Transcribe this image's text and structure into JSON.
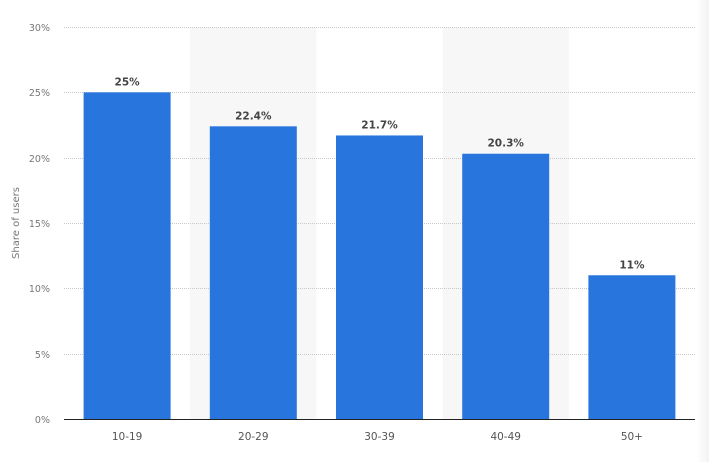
{
  "chart_data": {
    "type": "bar",
    "title": "",
    "xlabel": "",
    "ylabel": "Share of users",
    "categories": [
      "10-19",
      "20-29",
      "30-39",
      "40-49",
      "50+"
    ],
    "values": [
      25,
      22.4,
      21.7,
      20.3,
      11
    ],
    "data_labels": [
      "25%",
      "22.4%",
      "21.7%",
      "20.3%",
      "11%"
    ],
    "ylim": [
      0,
      30
    ],
    "yticks": [
      0,
      5,
      10,
      15,
      20,
      25,
      30
    ],
    "ytick_labels": [
      "0%",
      "5%",
      "10%",
      "15%",
      "20%",
      "25%",
      "30%"
    ],
    "grid": true,
    "legend": "none",
    "bar_color": "#2876dd",
    "band_color": "#f7f7f7"
  }
}
